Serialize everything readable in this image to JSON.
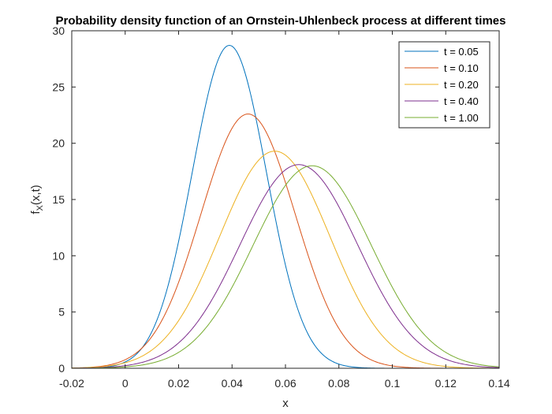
{
  "chart_data": {
    "type": "line",
    "title": "Probability density function of an Ornstein-Uhlenbeck process at different times",
    "xlabel": "x",
    "ylabel_main": "f",
    "ylabel_sub": "X",
    "ylabel_rest": "(x,t)",
    "xlim": [
      -0.02,
      0.14
    ],
    "ylim": [
      0,
      30
    ],
    "xticks": [
      -0.02,
      0,
      0.02,
      0.04,
      0.06,
      0.08,
      0.1,
      0.12,
      0.14
    ],
    "xtick_labels": [
      "-0.02",
      "0",
      "0.02",
      "0.04",
      "0.06",
      "0.08",
      "0.1",
      "0.12",
      "0.14"
    ],
    "yticks": [
      0,
      5,
      10,
      15,
      20,
      25,
      30
    ],
    "ytick_labels": [
      "0",
      "5",
      "10",
      "15",
      "20",
      "25",
      "30"
    ],
    "grid": false,
    "legend_position": "top-right",
    "series": [
      {
        "name": "t = 0.05",
        "color": "#0072BD",
        "mean": 0.039,
        "peak": 28.7
      },
      {
        "name": "t = 0.10",
        "color": "#D95319",
        "mean": 0.046,
        "peak": 22.6
      },
      {
        "name": "t = 0.20",
        "color": "#EDB120",
        "mean": 0.056,
        "peak": 19.3
      },
      {
        "name": "t = 0.40",
        "color": "#7E2F8E",
        "mean": 0.065,
        "peak": 18.1
      },
      {
        "name": "t = 1.00",
        "color": "#77AC30",
        "mean": 0.07,
        "peak": 18.0
      }
    ]
  }
}
